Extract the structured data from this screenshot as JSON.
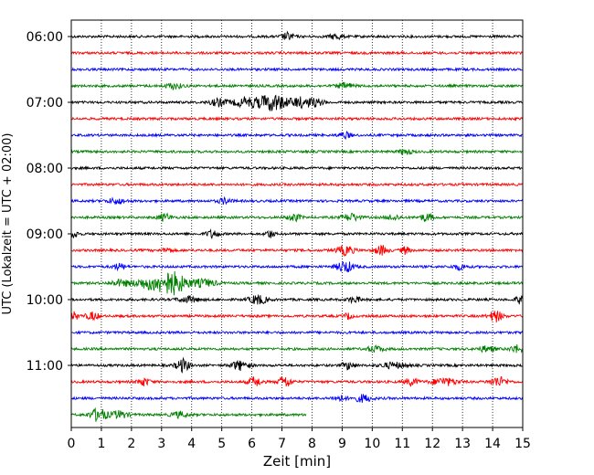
{
  "chart_data": {
    "type": "line",
    "title": "",
    "xlabel": "Zeit  [min]",
    "ylabel": "UTC (Lokalzeit = UTC + 02:00)",
    "xlim": [
      0,
      15
    ],
    "x_ticks": [
      0,
      1,
      2,
      3,
      4,
      5,
      6,
      7,
      8,
      9,
      10,
      11,
      12,
      13,
      14,
      15
    ],
    "x_grid": "dotted vertical lines at each minute",
    "y_ticks": [
      {
        "label": "06:00",
        "trace_index": 0
      },
      {
        "label": "07:00",
        "trace_index": 4
      },
      {
        "label": "08:00",
        "trace_index": 8
      },
      {
        "label": "09:00",
        "trace_index": 12
      },
      {
        "label": "10:00",
        "trace_index": 16
      },
      {
        "label": "11:00",
        "trace_index": 20
      }
    ],
    "trace_interval_min": 15,
    "trace_colors": [
      "#000000",
      "#ff0000",
      "#0000ff",
      "#008000"
    ],
    "series": [
      {
        "start": "06:00",
        "end_min": 15,
        "bursts": [
          [
            7.2,
            0.15,
            4
          ],
          [
            8.8,
            0.15,
            3
          ]
        ]
      },
      {
        "start": "06:15",
        "end_min": 15,
        "bursts": []
      },
      {
        "start": "06:30",
        "end_min": 15,
        "bursts": []
      },
      {
        "start": "06:45",
        "end_min": 15,
        "bursts": [
          [
            3.4,
            0.2,
            3
          ],
          [
            9.1,
            0.2,
            3
          ]
        ]
      },
      {
        "start": "07:00",
        "end_min": 15,
        "bursts": [
          [
            4.9,
            0.2,
            4
          ],
          [
            5.8,
            0.3,
            5
          ],
          [
            6.7,
            0.35,
            9
          ],
          [
            7.6,
            0.2,
            5
          ],
          [
            8.1,
            0.2,
            4
          ]
        ]
      },
      {
        "start": "07:15",
        "end_min": 15,
        "bursts": []
      },
      {
        "start": "07:30",
        "end_min": 15,
        "bursts": [
          [
            9.1,
            0.15,
            3
          ]
        ]
      },
      {
        "start": "07:45",
        "end_min": 15,
        "bursts": [
          [
            11.1,
            0.15,
            3
          ]
        ]
      },
      {
        "start": "08:00",
        "end_min": 15,
        "bursts": []
      },
      {
        "start": "08:15",
        "end_min": 15,
        "bursts": []
      },
      {
        "start": "08:30",
        "end_min": 15,
        "bursts": [
          [
            1.5,
            0.2,
            3
          ],
          [
            5.1,
            0.15,
            3
          ]
        ]
      },
      {
        "start": "08:45",
        "end_min": 15,
        "bursts": [
          [
            3.1,
            0.15,
            4
          ],
          [
            7.4,
            0.15,
            4
          ],
          [
            9.3,
            0.2,
            4
          ],
          [
            10.7,
            0.15,
            3
          ],
          [
            11.8,
            0.15,
            4
          ]
        ]
      },
      {
        "start": "09:00",
        "end_min": 15,
        "bursts": [
          [
            0.1,
            0.1,
            4
          ],
          [
            4.7,
            0.15,
            4
          ],
          [
            6.6,
            0.1,
            4
          ]
        ]
      },
      {
        "start": "09:15",
        "end_min": 15,
        "bursts": [
          [
            3.2,
            0.1,
            3
          ],
          [
            9.1,
            0.2,
            5
          ],
          [
            10.3,
            0.15,
            5
          ],
          [
            11.1,
            0.1,
            4
          ]
        ]
      },
      {
        "start": "09:30",
        "end_min": 15,
        "bursts": [
          [
            1.6,
            0.15,
            3
          ],
          [
            9.1,
            0.2,
            6
          ],
          [
            12.9,
            0.15,
            3
          ]
        ]
      },
      {
        "start": "09:45",
        "end_min": 15,
        "bursts": [
          [
            1.6,
            0.2,
            3
          ],
          [
            2.8,
            0.5,
            7
          ],
          [
            3.4,
            0.3,
            9
          ],
          [
            4.4,
            0.3,
            4
          ]
        ]
      },
      {
        "start": "10:00",
        "end_min": 15,
        "bursts": [
          [
            3.9,
            0.25,
            3
          ],
          [
            6.2,
            0.2,
            5
          ],
          [
            9.4,
            0.15,
            3
          ],
          [
            14.9,
            0.1,
            4
          ]
        ]
      },
      {
        "start": "10:15",
        "end_min": 15,
        "bursts": [
          [
            0.1,
            0.1,
            4
          ],
          [
            0.7,
            0.15,
            4
          ],
          [
            9.2,
            0.1,
            3
          ],
          [
            14.1,
            0.15,
            6
          ]
        ]
      },
      {
        "start": "10:30",
        "end_min": 15,
        "bursts": []
      },
      {
        "start": "10:45",
        "end_min": 15,
        "bursts": [
          [
            10.1,
            0.2,
            3
          ],
          [
            13.8,
            0.2,
            3
          ],
          [
            14.8,
            0.15,
            4
          ]
        ]
      },
      {
        "start": "11:00",
        "end_min": 15,
        "bursts": [
          [
            3.7,
            0.15,
            7
          ],
          [
            5.6,
            0.2,
            5
          ],
          [
            9.2,
            0.15,
            4
          ],
          [
            10.7,
            0.3,
            3
          ]
        ]
      },
      {
        "start": "11:15",
        "end_min": 15,
        "bursts": [
          [
            2.4,
            0.15,
            4
          ],
          [
            6.1,
            0.15,
            5
          ],
          [
            7.1,
            0.15,
            6
          ],
          [
            11.3,
            0.15,
            4
          ],
          [
            12.4,
            0.3,
            4
          ],
          [
            14.2,
            0.2,
            5
          ]
        ]
      },
      {
        "start": "11:30",
        "end_min": 15,
        "bursts": [
          [
            8.9,
            0.15,
            3
          ],
          [
            9.7,
            0.2,
            4
          ]
        ]
      },
      {
        "start": "11:45",
        "end_min": 7.8,
        "bursts": [
          [
            0.9,
            0.2,
            7
          ],
          [
            1.6,
            0.2,
            4
          ],
          [
            3.6,
            0.2,
            3
          ]
        ]
      }
    ]
  }
}
